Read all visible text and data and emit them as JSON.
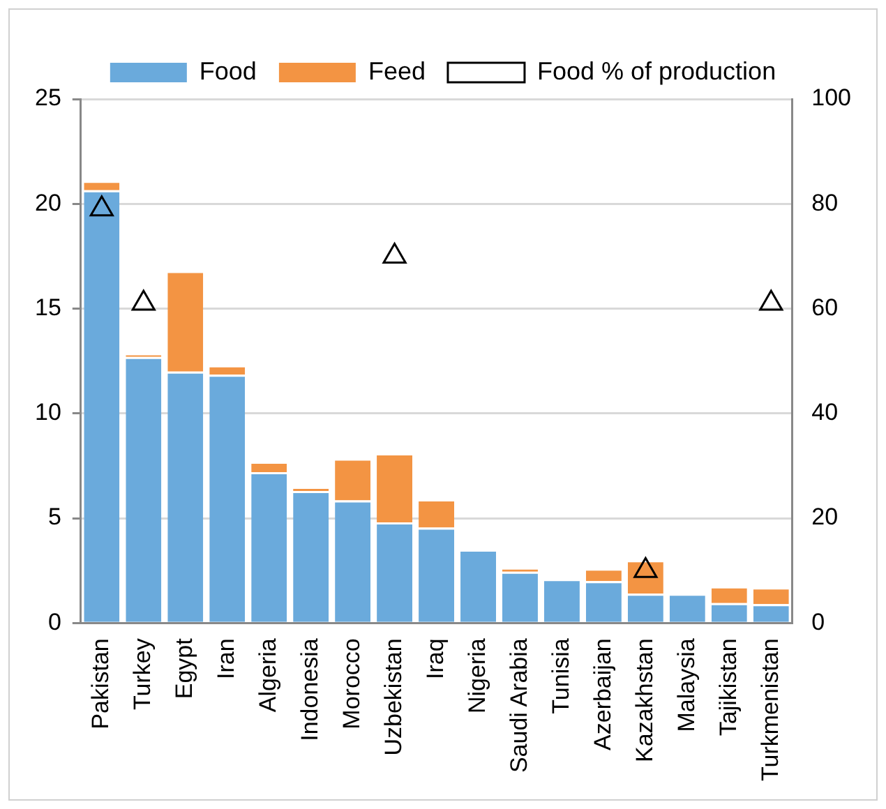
{
  "chart_data": {
    "type": "bar",
    "stacked": true,
    "categories": [
      "Pakistan",
      "Turkey",
      "Egypt",
      "Iran",
      "Algeria",
      "Indonesia",
      "Morocco",
      "Uzbekistan",
      "Iraq",
      "Nigeria",
      "Saudi Arabia",
      "Tunisia",
      "Azerbaijan",
      "Kazakhstan",
      "Malaysia",
      "Tajikistan",
      "Turkmenistan"
    ],
    "series": [
      {
        "name": "Food",
        "color": "#6aaadc",
        "values": [
          20.65,
          12.7,
          12.0,
          11.85,
          7.2,
          6.3,
          5.85,
          4.8,
          4.55,
          3.5,
          2.45,
          2.1,
          2.0,
          1.4,
          1.4,
          0.95,
          0.9
        ]
      },
      {
        "name": "Feed",
        "color": "#f39443",
        "values": [
          0.45,
          0.15,
          4.8,
          0.45,
          0.5,
          0.2,
          2.0,
          3.3,
          1.35,
          null,
          0.2,
          null,
          0.6,
          1.6,
          null,
          0.8,
          0.8
        ]
      },
      {
        "name": "Food % of production",
        "type": "scatter",
        "axis": "y2",
        "color": "#000000",
        "marker": "triangle",
        "x": [
          "Pakistan",
          "Turkey",
          "Uzbekistan",
          "Kazakhstan",
          "Turkmenistan"
        ],
        "values": [
          79,
          61,
          70,
          10,
          61
        ]
      }
    ],
    "ylim": [
      0,
      25
    ],
    "yticks": [
      0,
      5,
      10,
      15,
      20,
      25
    ],
    "y2lim": [
      0,
      100
    ],
    "y2ticks": [
      0,
      20,
      40,
      60,
      80,
      100
    ],
    "grid": "y",
    "legend": "top"
  }
}
